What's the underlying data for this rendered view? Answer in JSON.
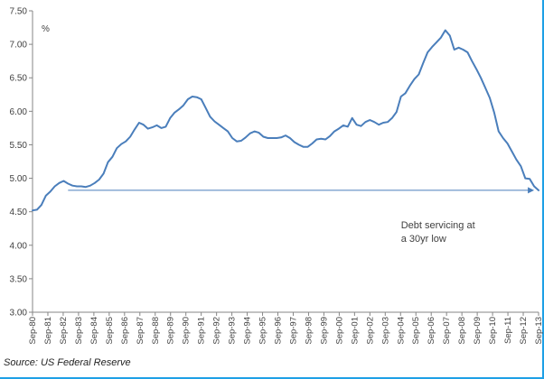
{
  "colors": {
    "line": "#4a7ebb",
    "axis": "#868686",
    "arrow": "#4a7ebb",
    "frame": "#1ea0e6"
  },
  "source": "Source: US Federal Reserve",
  "chart_data": {
    "type": "line",
    "ylabel": "%",
    "ylim": [
      3.0,
      7.5
    ],
    "yticks": [
      3.0,
      3.5,
      4.0,
      4.5,
      5.0,
      5.5,
      6.0,
      6.5,
      7.0,
      7.5
    ],
    "ytick_labels": [
      "3.00",
      "3.50",
      "4.00",
      "4.50",
      "5.00",
      "5.50",
      "6.00",
      "6.50",
      "7.00",
      "7.50"
    ],
    "xtick_labels": [
      "Sep-80",
      "Sep-81",
      "Sep-82",
      "Sep-83",
      "Sep-84",
      "Sep-85",
      "Sep-86",
      "Sep-87",
      "Sep-88",
      "Sep-89",
      "Sep-90",
      "Sep-91",
      "Sep-92",
      "Sep-93",
      "Sep-94",
      "Sep-95",
      "Sep-96",
      "Sep-97",
      "Sep-98",
      "Sep-99",
      "Sep-00",
      "Sep-01",
      "Sep-02",
      "Sep-03",
      "Sep-04",
      "Sep-05",
      "Sep-06",
      "Sep-07",
      "Sep-08",
      "Sep-09",
      "Sep-10",
      "Sep-11",
      "Sep-12",
      "Sep-13"
    ],
    "series": [
      {
        "values": [
          4.52,
          4.53,
          4.6,
          4.74,
          4.8,
          4.88,
          4.93,
          4.96,
          4.92,
          4.89,
          4.88,
          4.88,
          4.87,
          4.89,
          4.93,
          4.98,
          5.07,
          5.24,
          5.32,
          5.45,
          5.51,
          5.55,
          5.62,
          5.73,
          5.83,
          5.8,
          5.74,
          5.76,
          5.79,
          5.75,
          5.77,
          5.9,
          5.98,
          6.03,
          6.09,
          6.18,
          6.22,
          6.21,
          6.18,
          6.05,
          5.92,
          5.85,
          5.8,
          5.75,
          5.7,
          5.6,
          5.55,
          5.56,
          5.61,
          5.67,
          5.7,
          5.68,
          5.62,
          5.6,
          5.6,
          5.6,
          5.61,
          5.64,
          5.6,
          5.54,
          5.5,
          5.47,
          5.47,
          5.52,
          5.58,
          5.59,
          5.58,
          5.63,
          5.7,
          5.74,
          5.79,
          5.77,
          5.9,
          5.8,
          5.78,
          5.84,
          5.87,
          5.84,
          5.8,
          5.83,
          5.84,
          5.9,
          5.99,
          6.22,
          6.27,
          6.38,
          6.48,
          6.55,
          6.72,
          6.88,
          6.96,
          7.03,
          7.1,
          7.21,
          7.13,
          6.92,
          6.95,
          6.92,
          6.88,
          6.75,
          6.63,
          6.5,
          6.35,
          6.2,
          5.98,
          5.7,
          5.6,
          5.52,
          5.4,
          5.28,
          5.18,
          5.0,
          4.99,
          4.88,
          4.82
        ]
      }
    ],
    "annotations": [
      {
        "text_lines": [
          "Debt servicing at",
          "a 30yr low"
        ],
        "x_index": 83,
        "y": 4.25
      }
    ],
    "arrow": {
      "from_index": 8,
      "to_index": 113,
      "y": 4.82
    },
    "grid": false,
    "legend": "none"
  }
}
